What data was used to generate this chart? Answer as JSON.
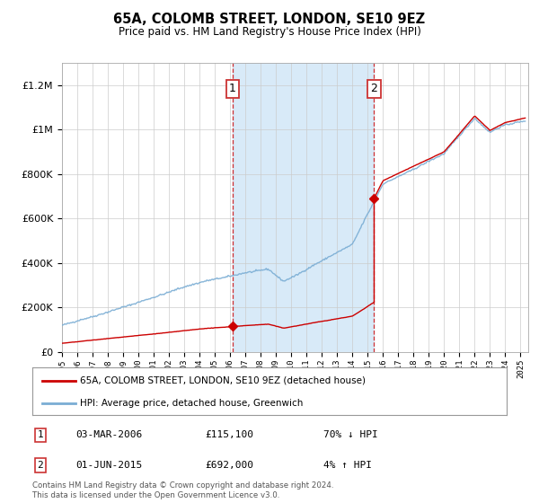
{
  "title": "65A, COLOMB STREET, LONDON, SE10 9EZ",
  "subtitle": "Price paid vs. HM Land Registry's House Price Index (HPI)",
  "legend_line1": "65A, COLOMB STREET, LONDON, SE10 9EZ (detached house)",
  "legend_line2": "HPI: Average price, detached house, Greenwich",
  "annotation1_label": "1",
  "annotation1_date": "03-MAR-2006",
  "annotation1_price": "£115,100",
  "annotation1_hpi": "70% ↓ HPI",
  "annotation1_year": 2006.17,
  "annotation2_label": "2",
  "annotation2_date": "01-JUN-2015",
  "annotation2_price": "£692,000",
  "annotation2_hpi": "4% ↑ HPI",
  "annotation2_year": 2015.42,
  "footer": "Contains HM Land Registry data © Crown copyright and database right 2024.\nThis data is licensed under the Open Government Licence v3.0.",
  "red_color": "#cc0000",
  "blue_color": "#7aadd4",
  "highlight_color": "#d8eaf8",
  "ylim_max": 1300000,
  "sale1_price": 115100,
  "sale2_price": 692000,
  "background_color": "#ffffff"
}
